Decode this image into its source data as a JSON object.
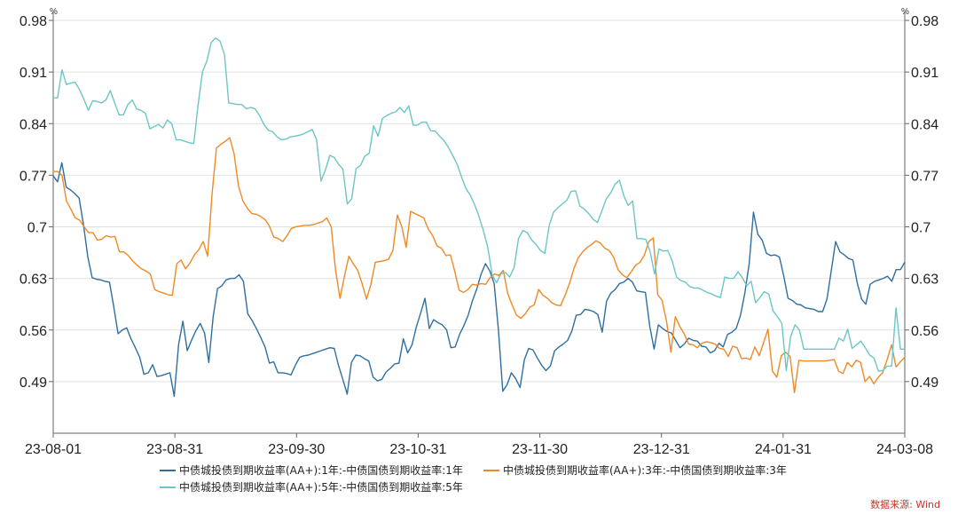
{
  "chart_data": {
    "type": "line",
    "title": "",
    "ylabel_left": "%",
    "ylabel_right": "%",
    "ylim": [
      0.42,
      0.98
    ],
    "yticks": [
      0.98,
      0.91,
      0.84,
      0.77,
      0.7,
      0.63,
      0.56,
      0.49
    ],
    "ytick_labels": [
      "0.98",
      "0.91",
      "0.84",
      "0.77",
      "0.7",
      "0.63",
      "0.56",
      "0.49"
    ],
    "xticks": [
      "23-08-01",
      "23-08-31",
      "23-09-30",
      "23-10-31",
      "23-11-30",
      "23-12-31",
      "24-01-31",
      "24-03-08"
    ],
    "source": "数据来源: Wind",
    "series": [
      {
        "name": "中债城投债到期收益率(AA+):1年:-中债国债到期收益率:1年",
        "color": "#2f6f9f",
        "values": [
          0.769,
          0.761,
          0.787,
          0.754,
          0.75,
          0.745,
          0.739,
          0.703,
          0.659,
          0.631,
          0.629,
          0.628,
          0.626,
          0.625,
          0.592,
          0.555,
          0.56,
          0.563,
          0.548,
          0.536,
          0.523,
          0.5,
          0.502,
          0.513,
          0.497,
          0.498,
          0.5,
          0.502,
          0.47,
          0.54,
          0.572,
          0.532,
          0.546,
          0.559,
          0.569,
          0.556,
          0.516,
          0.578,
          0.616,
          0.62,
          0.628,
          0.63,
          0.63,
          0.635,
          0.626,
          0.582,
          0.573,
          0.562,
          0.55,
          0.537,
          0.515,
          0.517,
          0.502,
          0.502,
          0.501,
          0.499,
          0.512,
          0.523,
          0.525,
          0.526,
          0.528,
          0.53,
          0.532,
          0.534,
          0.536,
          0.535,
          0.512,
          0.493,
          0.473,
          0.516,
          0.526,
          0.525,
          0.521,
          0.518,
          0.496,
          0.491,
          0.493,
          0.503,
          0.508,
          0.514,
          0.515,
          0.548,
          0.529,
          0.54,
          0.564,
          0.583,
          0.603,
          0.562,
          0.574,
          0.57,
          0.567,
          0.56,
          0.536,
          0.537,
          0.554,
          0.566,
          0.58,
          0.6,
          0.616,
          0.636,
          0.65,
          0.64,
          0.623,
          0.56,
          0.477,
          0.486,
          0.502,
          0.494,
          0.482,
          0.52,
          0.535,
          0.533,
          0.522,
          0.512,
          0.505,
          0.511,
          0.532,
          0.537,
          0.541,
          0.546,
          0.559,
          0.58,
          0.581,
          0.588,
          0.587,
          0.585,
          0.581,
          0.557,
          0.599,
          0.61,
          0.615,
          0.623,
          0.625,
          0.63,
          0.625,
          0.613,
          0.612,
          0.611,
          0.565,
          0.534,
          0.567,
          0.562,
          0.558,
          0.556,
          0.546,
          0.536,
          0.541,
          0.549,
          0.546,
          0.545,
          0.538,
          0.537,
          0.529,
          0.532,
          0.542,
          0.537,
          0.554,
          0.557,
          0.562,
          0.58,
          0.61,
          0.65,
          0.72,
          0.69,
          0.682,
          0.664,
          0.661,
          0.662,
          0.659,
          0.633,
          0.603,
          0.6,
          0.595,
          0.594,
          0.59,
          0.589,
          0.588,
          0.585,
          0.585,
          0.602,
          0.641,
          0.68,
          0.666,
          0.662,
          0.657,
          0.655,
          0.624,
          0.602,
          0.595,
          0.622,
          0.626,
          0.628,
          0.63,
          0.633,
          0.626,
          0.642,
          0.642,
          0.652
        ]
      },
      {
        "name": "中债城投债到期收益率(AA+):3年:-中债国债到期收益率:3年",
        "color": "#ee8a26",
        "values": [
          0.775,
          0.775,
          0.77,
          0.735,
          0.724,
          0.712,
          0.709,
          0.7,
          0.692,
          0.692,
          0.682,
          0.683,
          0.688,
          0.686,
          0.687,
          0.666,
          0.666,
          0.661,
          0.654,
          0.648,
          0.643,
          0.64,
          0.636,
          0.615,
          0.612,
          0.61,
          0.608,
          0.607,
          0.65,
          0.655,
          0.643,
          0.651,
          0.662,
          0.669,
          0.68,
          0.66,
          0.745,
          0.807,
          0.812,
          0.816,
          0.821,
          0.799,
          0.755,
          0.735,
          0.725,
          0.718,
          0.717,
          0.714,
          0.71,
          0.701,
          0.686,
          0.684,
          0.68,
          0.688,
          0.698,
          0.7,
          0.701,
          0.702,
          0.702,
          0.703,
          0.705,
          0.707,
          0.712,
          0.7,
          0.641,
          0.603,
          0.633,
          0.66,
          0.65,
          0.641,
          0.623,
          0.602,
          0.622,
          0.652,
          0.653,
          0.654,
          0.656,
          0.668,
          0.716,
          0.7,
          0.672,
          0.721,
          0.718,
          0.715,
          0.712,
          0.697,
          0.688,
          0.674,
          0.671,
          0.661,
          0.662,
          0.64,
          0.614,
          0.611,
          0.615,
          0.622,
          0.621,
          0.623,
          0.622,
          0.631,
          0.636,
          0.634,
          0.641,
          0.61,
          0.594,
          0.58,
          0.576,
          0.582,
          0.591,
          0.594,
          0.615,
          0.607,
          0.603,
          0.597,
          0.594,
          0.593,
          0.607,
          0.623,
          0.643,
          0.658,
          0.666,
          0.672,
          0.676,
          0.681,
          0.678,
          0.671,
          0.668,
          0.659,
          0.642,
          0.635,
          0.631,
          0.639,
          0.648,
          0.652,
          0.662,
          0.68,
          0.685,
          0.608,
          0.6,
          0.572,
          0.53,
          0.578,
          0.565,
          0.555,
          0.541,
          0.54,
          0.536,
          0.542,
          0.544,
          0.543,
          0.541,
          0.535,
          0.534,
          0.524,
          0.538,
          0.536,
          0.521,
          0.522,
          0.52,
          0.537,
          0.525,
          0.543,
          0.561,
          0.504,
          0.496,
          0.525,
          0.53,
          0.524,
          0.475,
          0.519,
          0.518,
          0.518,
          0.518,
          0.518,
          0.518,
          0.518,
          0.519,
          0.52,
          0.504,
          0.501,
          0.516,
          0.51,
          0.519,
          0.516,
          0.49,
          0.497,
          0.487,
          0.496,
          0.502,
          0.52,
          0.54,
          0.51,
          0.517,
          0.523
        ]
      },
      {
        "name": "中债城投债到期收益率(AA+):5年:-中债国债到期收益率:5年",
        "color": "#6cc6c6",
        "values": [
          0.875,
          0.875,
          0.913,
          0.893,
          0.895,
          0.896,
          0.886,
          0.873,
          0.858,
          0.871,
          0.87,
          0.868,
          0.872,
          0.885,
          0.868,
          0.852,
          0.852,
          0.866,
          0.872,
          0.86,
          0.858,
          0.854,
          0.833,
          0.836,
          0.839,
          0.834,
          0.845,
          0.84,
          0.818,
          0.818,
          0.816,
          0.814,
          0.813,
          0.865,
          0.91,
          0.925,
          0.95,
          0.956,
          0.952,
          0.934,
          0.868,
          0.867,
          0.866,
          0.866,
          0.86,
          0.862,
          0.86,
          0.851,
          0.839,
          0.831,
          0.829,
          0.822,
          0.818,
          0.819,
          0.822,
          0.823,
          0.824,
          0.826,
          0.829,
          0.832,
          0.818,
          0.762,
          0.777,
          0.797,
          0.794,
          0.785,
          0.778,
          0.731,
          0.738,
          0.779,
          0.783,
          0.796,
          0.8,
          0.837,
          0.823,
          0.847,
          0.851,
          0.854,
          0.856,
          0.862,
          0.855,
          0.864,
          0.838,
          0.838,
          0.842,
          0.842,
          0.83,
          0.83,
          0.823,
          0.817,
          0.808,
          0.797,
          0.785,
          0.768,
          0.752,
          0.743,
          0.73,
          0.714,
          0.695,
          0.672,
          0.635,
          0.624,
          0.636,
          0.638,
          0.632,
          0.645,
          0.684,
          0.695,
          0.692,
          0.682,
          0.676,
          0.668,
          0.664,
          0.702,
          0.72,
          0.726,
          0.731,
          0.736,
          0.748,
          0.749,
          0.728,
          0.724,
          0.718,
          0.71,
          0.706,
          0.722,
          0.738,
          0.746,
          0.758,
          0.763,
          0.742,
          0.729,
          0.735,
          0.684,
          0.684,
          0.683,
          0.666,
          0.636,
          0.67,
          0.667,
          0.668,
          0.654,
          0.632,
          0.627,
          0.625,
          0.619,
          0.617,
          0.617,
          0.614,
          0.611,
          0.609,
          0.606,
          0.604,
          0.632,
          0.63,
          0.63,
          0.639,
          0.631,
          0.62,
          0.626,
          0.597,
          0.604,
          0.612,
          0.609,
          0.586,
          0.578,
          0.569,
          0.505,
          0.551,
          0.567,
          0.56,
          0.534,
          0.534,
          0.534,
          0.534,
          0.534,
          0.534,
          0.534,
          0.534,
          0.549,
          0.545,
          0.561,
          0.535,
          0.54,
          0.545,
          0.536,
          0.526,
          0.522,
          0.504,
          0.505,
          0.511,
          0.511,
          0.59,
          0.534,
          0.534
        ]
      }
    ]
  }
}
